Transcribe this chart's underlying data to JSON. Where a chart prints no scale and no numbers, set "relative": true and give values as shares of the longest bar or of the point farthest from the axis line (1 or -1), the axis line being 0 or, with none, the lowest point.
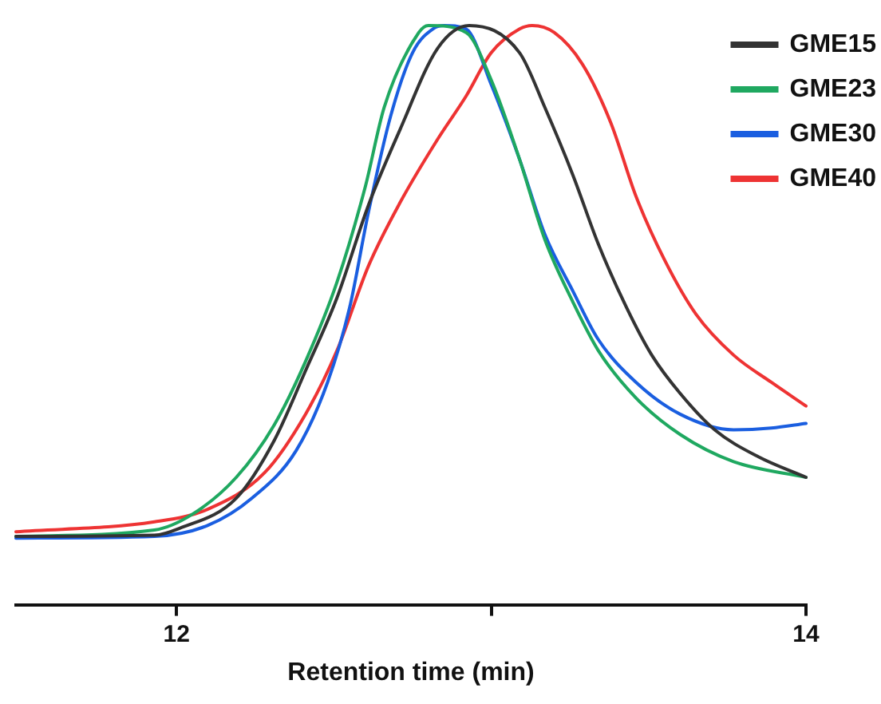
{
  "chart_data": {
    "type": "line",
    "relative": true,
    "xlabel": "Retention time (min)",
    "xlim": [
      11.49,
      14
    ],
    "xticks": [
      12,
      {
        "value": 13,
        "label": null
      },
      14
    ],
    "legend": "top right",
    "grid": false,
    "marker": "none",
    "line_style": "solid",
    "series": [
      {
        "name": "GME15",
        "color": "#333333",
        "x": [
          11.49,
          11.93,
          12.01,
          12.19,
          12.31,
          12.41,
          12.51,
          12.61,
          12.71,
          12.83,
          12.93,
          13.09,
          13.17,
          13.26,
          13.34,
          13.43,
          13.51,
          13.6,
          13.71,
          13.85,
          14
        ],
        "values": [
          0.118,
          0.12,
          0.132,
          0.184,
          0.283,
          0.404,
          0.53,
          0.69,
          0.82,
          0.961,
          1,
          0.953,
          0.859,
          0.741,
          0.623,
          0.513,
          0.431,
          0.365,
          0.302,
          0.255,
          0.22
        ]
      },
      {
        "name": "GME23",
        "color": "#1fa860",
        "x": [
          11.49,
          11.93,
          12.05,
          12.19,
          12.31,
          12.41,
          12.51,
          12.6,
          12.66,
          12.77,
          12.8,
          12.92,
          13,
          13.09,
          13.17,
          13.26,
          13.34,
          13.46,
          13.6,
          13.77,
          14
        ],
        "values": [
          0.118,
          0.129,
          0.156,
          0.22,
          0.31,
          0.42,
          0.557,
          0.722,
          0.859,
          0.988,
          1,
          0.988,
          0.906,
          0.769,
          0.631,
          0.522,
          0.439,
          0.357,
          0.294,
          0.247,
          0.22
        ]
      },
      {
        "name": "GME30",
        "color": "#1a5ee0",
        "x": [
          11.49,
          11.93,
          12.1,
          12.24,
          12.38,
          12.48,
          12.55,
          12.61,
          12.68,
          12.75,
          12.82,
          12.85,
          12.92,
          13,
          13.09,
          13.17,
          13.26,
          13.34,
          13.46,
          13.6,
          13.77,
          13.89,
          14
        ],
        "values": [
          0.115,
          0.118,
          0.137,
          0.184,
          0.266,
          0.384,
          0.513,
          0.678,
          0.843,
          0.953,
          0.996,
          1,
          0.994,
          0.898,
          0.769,
          0.64,
          0.541,
          0.458,
          0.384,
          0.329,
          0.302,
          0.305,
          0.313
        ]
      },
      {
        "name": "GME40",
        "color": "#ee3333",
        "x": [
          11.49,
          11.93,
          12.1,
          12.28,
          12.41,
          12.51,
          12.61,
          12.71,
          12.83,
          12.92,
          13,
          13.09,
          13.13,
          13.2,
          13.29,
          13.38,
          13.46,
          13.55,
          13.65,
          13.77,
          13.89,
          14
        ],
        "values": [
          0.126,
          0.143,
          0.165,
          0.228,
          0.329,
          0.439,
          0.585,
          0.694,
          0.804,
          0.878,
          0.953,
          0.994,
          1,
          0.988,
          0.933,
          0.832,
          0.705,
          0.596,
          0.502,
          0.431,
          0.384,
          0.343
        ]
      }
    ]
  }
}
